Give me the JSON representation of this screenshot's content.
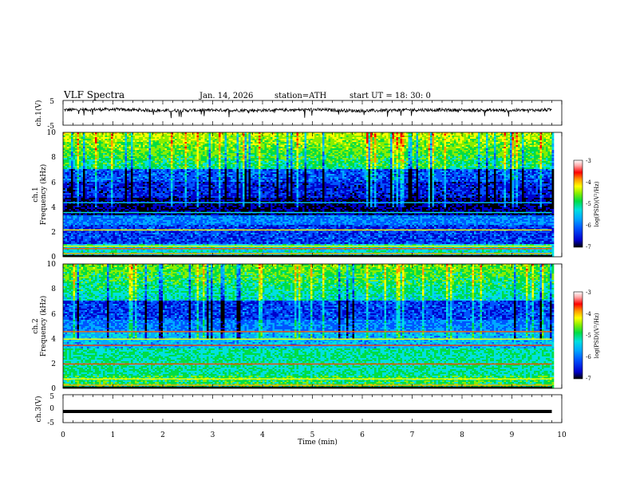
{
  "header": {
    "title": "VLF  Spectra",
    "date": "Jan. 14, 2026",
    "station": "station=ATH",
    "start": "start  UT  =   18: 30: 0"
  },
  "colors": {
    "trace": "#000000",
    "colormap": [
      "#000000",
      "#0000cc",
      "#0055ff",
      "#00aaff",
      "#00e0e0",
      "#00dd44",
      "#88ee00",
      "#ffff00",
      "#ff9900",
      "#ff0000",
      "#ffaaaa",
      "#ffffff"
    ]
  },
  "chart_data": [
    {
      "type": "line",
      "name": "ch1-waveform",
      "ylabel": "ch.1(V)",
      "ylim": [
        -5,
        5
      ],
      "yticks": [
        "5",
        "-5"
      ],
      "x": [
        0,
        1,
        2,
        3,
        4,
        5,
        6,
        7,
        8,
        9,
        9.8
      ],
      "y": [
        1.2,
        1.4,
        0.9,
        1.1,
        1.0,
        1.3,
        0.8,
        1.2,
        1.1,
        1.0,
        1.2
      ],
      "xlim": [
        0,
        10
      ]
    },
    {
      "type": "heatmap",
      "name": "ch1-spectrogram",
      "ylabel_line1": "ch.1",
      "ylabel_line2": "Frequency  (kHz)",
      "ylim": [
        0,
        10
      ],
      "yticks": [
        "0",
        "2",
        "4",
        "6",
        "8",
        "10"
      ],
      "xlim": [
        0,
        10
      ],
      "data_extent_min": 9.8,
      "colorbar": {
        "label": "log(PSD)(V²/Hz)",
        "range": [
          -7,
          -3
        ],
        "ticks": [
          "-3",
          "-4",
          "-5",
          "-6",
          "-7"
        ]
      }
    },
    {
      "type": "heatmap",
      "name": "ch2-spectrogram",
      "ylabel_line1": "ch.2",
      "ylabel_line2": "Frequency  (kHz)",
      "ylim": [
        0,
        10
      ],
      "yticks": [
        "0",
        "2",
        "4",
        "6",
        "8",
        "10"
      ],
      "xlim": [
        0,
        10
      ],
      "data_extent_min": 9.8,
      "colorbar": {
        "label": "log(PSD)(V²/Hz)",
        "range": [
          -7,
          -3
        ],
        "ticks": [
          "-3",
          "-4",
          "-5",
          "-6",
          "-7"
        ]
      }
    },
    {
      "type": "line",
      "name": "ch3-waveform",
      "ylabel": "ch.3(V)",
      "ylim": [
        -5,
        5
      ],
      "yticks": [
        "5",
        "0",
        "-5"
      ],
      "x": [
        0,
        9.8
      ],
      "y": [
        -1.0,
        -1.0
      ],
      "xlim": [
        0,
        10
      ],
      "xlabel": "Time  (min)",
      "xticks": [
        "0",
        "1",
        "2",
        "3",
        "4",
        "5",
        "6",
        "7",
        "8",
        "9",
        "10"
      ]
    }
  ]
}
